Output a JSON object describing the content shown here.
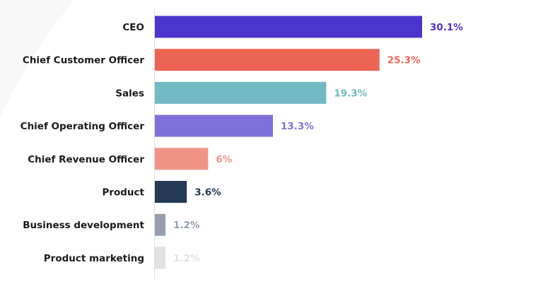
{
  "chart_data": {
    "type": "bar",
    "orientation": "horizontal",
    "categories": [
      "CEO",
      "Chief Customer Officer",
      "Sales",
      "Chief Operating Officer",
      "Chief Revenue Officer",
      "Product",
      "Business development",
      "Product marketing"
    ],
    "values": [
      30.1,
      25.3,
      19.3,
      13.3,
      6,
      3.6,
      1.2,
      1.2
    ],
    "data_labels": [
      "30.1%",
      "25.3%",
      "19.3%",
      "13.3%",
      "6%",
      "3.6%",
      "1.2%",
      "1.2%"
    ],
    "colors": [
      "#4b35cc",
      "#ec6554",
      "#73b9c4",
      "#8070db",
      "#f19487",
      "#243a55",
      "#95a0ac",
      "#e2e2e2"
    ],
    "label_colors": [
      "#4b35cc",
      "#ec6554",
      "#73b9c4",
      "#8070db",
      "#f19487",
      "#243a55",
      "#95a0ac",
      "#e2e2e2"
    ],
    "xlim": [
      0,
      30.1
    ],
    "grid": false,
    "legend": "none",
    "title": "",
    "xlabel": "",
    "ylabel": ""
  }
}
